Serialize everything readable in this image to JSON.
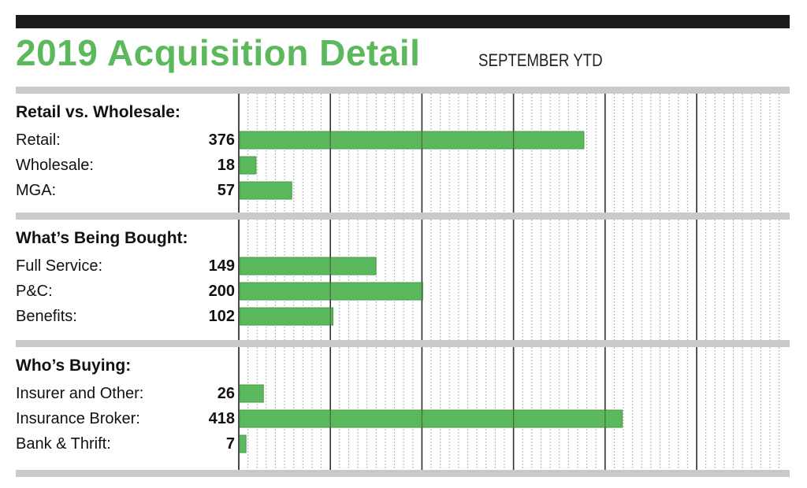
{
  "title": "2019 Acquisition Detail",
  "subtitle": "SEPTEMBER YTD",
  "colors": {
    "bar": "#5cb85c",
    "bar_edge": "#4a9a4a",
    "title": "#5cb85c",
    "divider": "#c9c9c9",
    "top_bar": "#1a1a1a"
  },
  "chart_data": {
    "type": "bar",
    "orientation": "horizontal",
    "title": "2019 Acquisition Detail",
    "subtitle": "SEPTEMBER YTD",
    "xlim": [
      0,
      600
    ],
    "grid": true,
    "groups": [
      {
        "heading": "Retail vs. Wholesale:",
        "categories": [
          "Retail:",
          "Wholesale:",
          "MGA:"
        ],
        "values": [
          376,
          18,
          57
        ]
      },
      {
        "heading": "What’s Being Bought:",
        "categories": [
          "Full Service:",
          "P&C:",
          "Benefits:"
        ],
        "values": [
          149,
          200,
          102
        ]
      },
      {
        "heading": "Who’s Buying:",
        "categories": [
          "Insurer and Other:",
          "Insurance Broker:",
          "Bank & Thrift:"
        ],
        "values": [
          26,
          418,
          7
        ]
      }
    ]
  }
}
